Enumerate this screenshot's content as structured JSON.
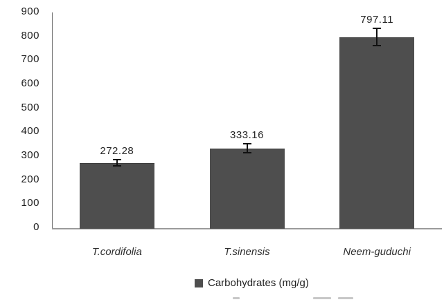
{
  "chart_data": {
    "type": "bar",
    "title": "",
    "categories": [
      "T.cordifolia",
      "T.sinensis",
      "Neem-guduchi"
    ],
    "series": [
      {
        "name": "Carbohydrates (mg/g)",
        "values": [
          272.28,
          333.16,
          797.11
        ],
        "errors": [
          16,
          21,
          39
        ]
      }
    ],
    "value_labels": [
      "272.28",
      "333.16",
      "797.11"
    ],
    "ylim": [
      0,
      900
    ],
    "ytick_step": 100,
    "yticks": [
      "0",
      "100",
      "200",
      "300",
      "400",
      "500",
      "600",
      "700",
      "800",
      "900"
    ],
    "xlabel": "",
    "ylabel": "",
    "grid": false,
    "legend_position": "bottom",
    "bar_color": "#4e4e4e"
  },
  "legend": {
    "marker": "square",
    "label": "Carbohydrates (mg/g)"
  },
  "colors": {
    "bar": "#4e4e4e",
    "y_axis_line": "#6f6f6f",
    "x_axis_line": "#9a9a9a",
    "text": "#1f1f1f",
    "background": "#ffffff"
  }
}
